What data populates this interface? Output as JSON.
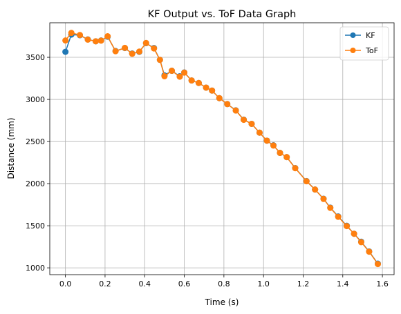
{
  "chart_data": {
    "type": "line",
    "title": "KF Output vs. ToF Data Graph",
    "xlabel": "Time (s)",
    "ylabel": "Distance (mm)",
    "xlim": [
      -0.079,
      1.659
    ],
    "ylim": [
      919,
      3910
    ],
    "x_ticks": [
      0.0,
      0.2,
      0.4,
      0.6,
      0.8,
      1.0,
      1.2,
      1.4,
      1.6
    ],
    "x_tick_labels": [
      "0.0",
      "0.2",
      "0.4",
      "0.6",
      "0.8",
      "1.0",
      "1.2",
      "1.4",
      "1.6"
    ],
    "y_ticks": [
      1000,
      1500,
      2000,
      2500,
      3000,
      3500
    ],
    "y_tick_labels": [
      "1000",
      "1500",
      "2000",
      "2500",
      "3000",
      "3500"
    ],
    "grid": true,
    "legend_position": "top-right",
    "series": [
      {
        "name": "KF",
        "color": "#1f77b4",
        "marker": "circle",
        "x": [
          0.0,
          0.03,
          0.073,
          0.113,
          0.153,
          0.18,
          0.213,
          0.253,
          0.3,
          0.337,
          0.373,
          0.407,
          0.447,
          0.477,
          0.5,
          0.537,
          0.577,
          0.6,
          0.637,
          0.673,
          0.71,
          0.74,
          0.777,
          0.817,
          0.86,
          0.9,
          0.94,
          0.98,
          1.017,
          1.05,
          1.083,
          1.117,
          1.16,
          1.217,
          1.26,
          1.303,
          1.337,
          1.377,
          1.42,
          1.457,
          1.493,
          1.533,
          1.577
        ],
        "y": [
          3565,
          3770,
          3762,
          3712,
          3690,
          3700,
          3745,
          3575,
          3610,
          3545,
          3565,
          3668,
          3610,
          3470,
          3285,
          3340,
          3275,
          3320,
          3225,
          3195,
          3140,
          3105,
          3015,
          2945,
          2870,
          2760,
          2710,
          2605,
          2510,
          2455,
          2365,
          2315,
          2185,
          2030,
          1930,
          1820,
          1715,
          1610,
          1500,
          1405,
          1310,
          1195,
          1050
        ]
      },
      {
        "name": "ToF",
        "color": "#ff7f0e",
        "marker": "circle",
        "x": [
          0.0,
          0.03,
          0.073,
          0.113,
          0.153,
          0.18,
          0.213,
          0.253,
          0.3,
          0.337,
          0.373,
          0.407,
          0.447,
          0.477,
          0.5,
          0.537,
          0.577,
          0.6,
          0.637,
          0.673,
          0.71,
          0.74,
          0.777,
          0.817,
          0.86,
          0.9,
          0.94,
          0.98,
          1.017,
          1.05,
          1.083,
          1.117,
          1.16,
          1.217,
          1.26,
          1.303,
          1.337,
          1.377,
          1.42,
          1.457,
          1.493,
          1.533,
          1.577
        ],
        "y": [
          3700,
          3790,
          3765,
          3710,
          3690,
          3698,
          3750,
          3572,
          3612,
          3542,
          3568,
          3670,
          3605,
          3470,
          3275,
          3340,
          3270,
          3318,
          3225,
          3195,
          3140,
          3105,
          3015,
          2945,
          2868,
          2758,
          2710,
          2605,
          2510,
          2452,
          2365,
          2315,
          2183,
          2028,
          1930,
          1818,
          1712,
          1606,
          1496,
          1405,
          1305,
          1192,
          1045
        ]
      }
    ]
  }
}
